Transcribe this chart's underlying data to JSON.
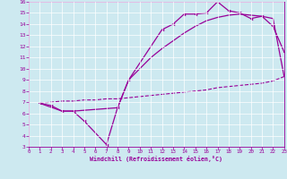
{
  "xlabel": "Windchill (Refroidissement éolien,°C)",
  "bg_color": "#cde9f0",
  "line_color": "#990099",
  "xlim": [
    0,
    23
  ],
  "ylim": [
    3,
    16
  ],
  "xticks": [
    0,
    1,
    2,
    3,
    4,
    5,
    6,
    7,
    8,
    9,
    10,
    11,
    12,
    13,
    14,
    15,
    16,
    17,
    18,
    19,
    20,
    21,
    22,
    23
  ],
  "yticks": [
    3,
    4,
    5,
    6,
    7,
    8,
    9,
    10,
    11,
    12,
    13,
    14,
    15,
    16
  ],
  "line1_x": [
    1,
    2,
    3,
    4,
    5,
    7,
    8,
    9,
    12,
    13,
    14,
    15,
    16,
    17,
    18,
    19,
    20,
    21,
    22,
    23
  ],
  "line1_y": [
    6.9,
    6.7,
    6.2,
    6.2,
    5.3,
    3.2,
    6.5,
    9.0,
    13.5,
    14.0,
    14.9,
    14.9,
    15.0,
    16.0,
    15.2,
    15.0,
    14.5,
    14.7,
    13.8,
    11.5
  ],
  "line2_x": [
    1,
    2,
    3,
    4,
    5,
    6,
    7,
    8,
    9,
    10,
    11,
    12,
    13,
    14,
    15,
    16,
    17,
    18,
    19,
    20,
    21,
    22,
    23
  ],
  "line2_y": [
    6.9,
    7.0,
    7.1,
    7.1,
    7.2,
    7.2,
    7.3,
    7.3,
    7.4,
    7.5,
    7.6,
    7.7,
    7.8,
    7.9,
    8.0,
    8.1,
    8.3,
    8.4,
    8.5,
    8.6,
    8.7,
    8.9,
    9.3
  ],
  "line3_x": [
    1,
    3,
    4,
    8,
    9,
    10,
    11,
    12,
    13,
    14,
    15,
    16,
    17,
    18,
    19,
    20,
    21,
    22,
    23
  ],
  "line3_y": [
    6.9,
    6.2,
    6.2,
    6.5,
    9.0,
    10.0,
    11.0,
    11.8,
    12.5,
    13.2,
    13.8,
    14.3,
    14.6,
    14.8,
    14.9,
    14.8,
    14.7,
    14.5,
    9.3
  ]
}
